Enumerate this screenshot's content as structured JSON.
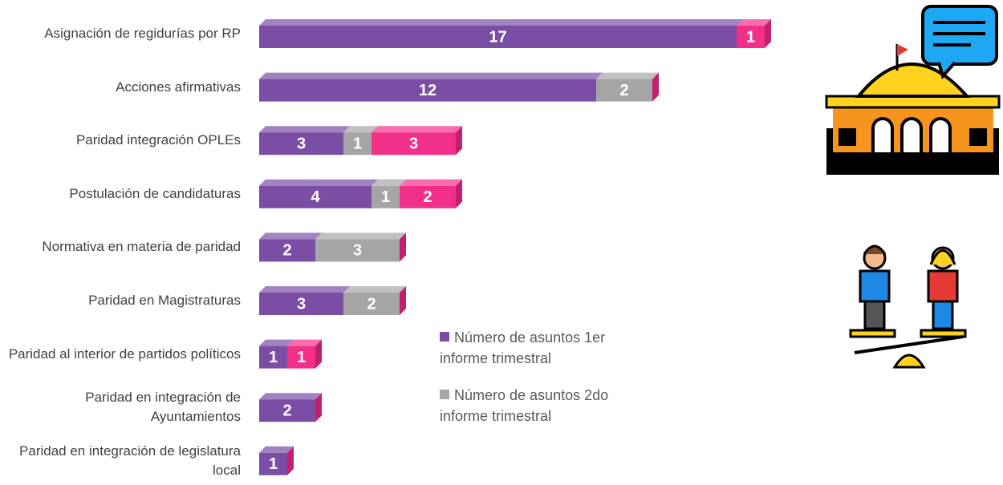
{
  "chart_data": {
    "type": "bar",
    "orientation": "horizontal",
    "stacked": true,
    "categories": [
      "Asignación de regidurías por RP",
      "Acciones afirmativas",
      "Paridad integración OPLEs",
      "Postulación de candidaturas",
      "Normativa en materia de paridad",
      "Paridad en Magistraturas",
      "Paridad al interior de partidos políticos",
      "Paridad en integración de Ayuntamientos",
      "Paridad en integración de legislatura local"
    ],
    "series": [
      {
        "name": "Número de asuntos 1er informe trimestral",
        "color": "#7b4ea6",
        "values": [
          17,
          12,
          3,
          4,
          2,
          3,
          1,
          2,
          1
        ]
      },
      {
        "name": "Número de asuntos 2do informe trimestral",
        "color": "#a5a5a5",
        "values": [
          null,
          2,
          1,
          1,
          3,
          2,
          null,
          null,
          null
        ]
      },
      {
        "color": "#f2308a",
        "values": [
          1,
          null,
          3,
          2,
          null,
          null,
          1,
          null,
          null
        ]
      }
    ]
  }
}
